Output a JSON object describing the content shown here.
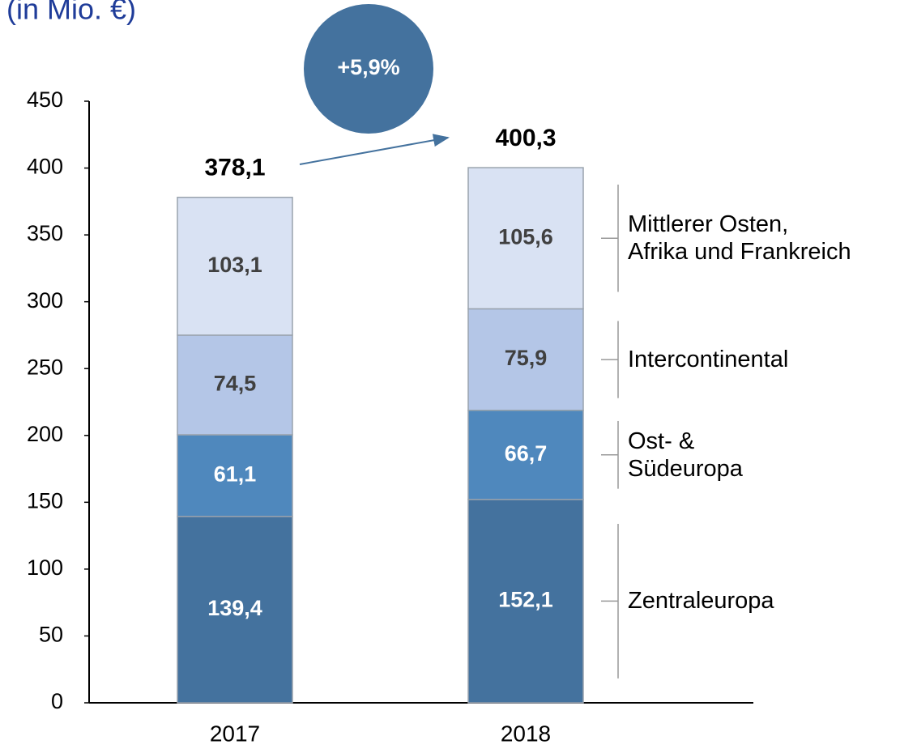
{
  "chart_data": {
    "type": "stacked_bar",
    "subtitle": "(in Mio. €)",
    "annotation": "+5,9%",
    "categories": [
      "2017",
      "2018"
    ],
    "series": [
      {
        "name": "Zentraleuropa",
        "color": "#44729e",
        "label_color": "#ffffff",
        "values": [
          139.4,
          152.1
        ],
        "value_labels": [
          "139,4",
          "152,1"
        ]
      },
      {
        "name": "Ost- &\nSüdeuropa",
        "color": "#4f88bd",
        "label_color": "#ffffff",
        "values": [
          61.1,
          66.7
        ],
        "value_labels": [
          "61,1",
          "66,7"
        ]
      },
      {
        "name": "Intercontinental",
        "color": "#b4c6e7",
        "label_color": "#404040",
        "values": [
          74.5,
          75.9
        ],
        "value_labels": [
          "74,5",
          "75,9"
        ]
      },
      {
        "name": "Mittlerer Osten,\nAfrika und Frankreich",
        "color": "#d9e2f3",
        "label_color": "#404040",
        "values": [
          103.1,
          105.6
        ],
        "value_labels": [
          "103,1",
          "105,6"
        ]
      }
    ],
    "totals": [
      378.1,
      400.3
    ],
    "total_labels": [
      "378,1",
      "400,3"
    ],
    "ylim": [
      0,
      450
    ],
    "yticks": [
      0,
      50,
      100,
      150,
      200,
      250,
      300,
      350,
      400,
      450
    ]
  }
}
